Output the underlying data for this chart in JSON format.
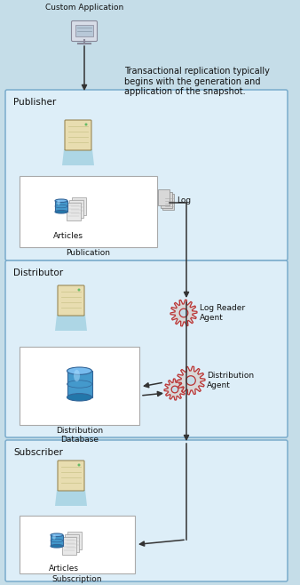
{
  "bg_color": "#c5dde8",
  "box_bg": "#ddeef8",
  "box_edge": "#7aaccc",
  "white_box": "#ffffff",
  "white_box_edge": "#aaaaaa",
  "text_dark": "#111111",
  "arrow_color": "#333333",
  "gear_fill": "#d8d8d8",
  "gear_edge": "#bb3333",
  "server_body": "#e8ddb0",
  "server_edge": "#998855",
  "server_shadow": "#d0c890",
  "beam_color": "#99ccdd",
  "db_top": "#77bbee",
  "db_mid": "#4499cc",
  "db_bot": "#2277aa",
  "page_fill": "#e8e8e8",
  "page_edge": "#999999",
  "monitor_body": "#d8dde8",
  "monitor_screen": "#b8c8d8",
  "monitor_edge": "#888899",
  "log_fill": "#d8d8d8",
  "log_edge": "#888888",
  "title_fs": 7.5,
  "label_fs": 6.5,
  "annot_fs": 7.0,
  "custom_app": "Custom Application",
  "annot_text": "Transactional replication typically\nbegins with the generation and\napplication of the snapshot.",
  "publisher_lbl": "Publisher",
  "articles_lbl": "Articles",
  "publication_lbl": "Publication",
  "log_lbl": "Log",
  "distributor_lbl": "Distributor",
  "log_reader_lbl": "Log Reader\nAgent",
  "dist_agent_lbl": "Distribution\nAgent",
  "dist_db_lbl": "Distribution\nDatabase",
  "subscriber_lbl": "Subscriber",
  "sub_articles_lbl": "Articles",
  "subscription_lbl": "Subscription"
}
